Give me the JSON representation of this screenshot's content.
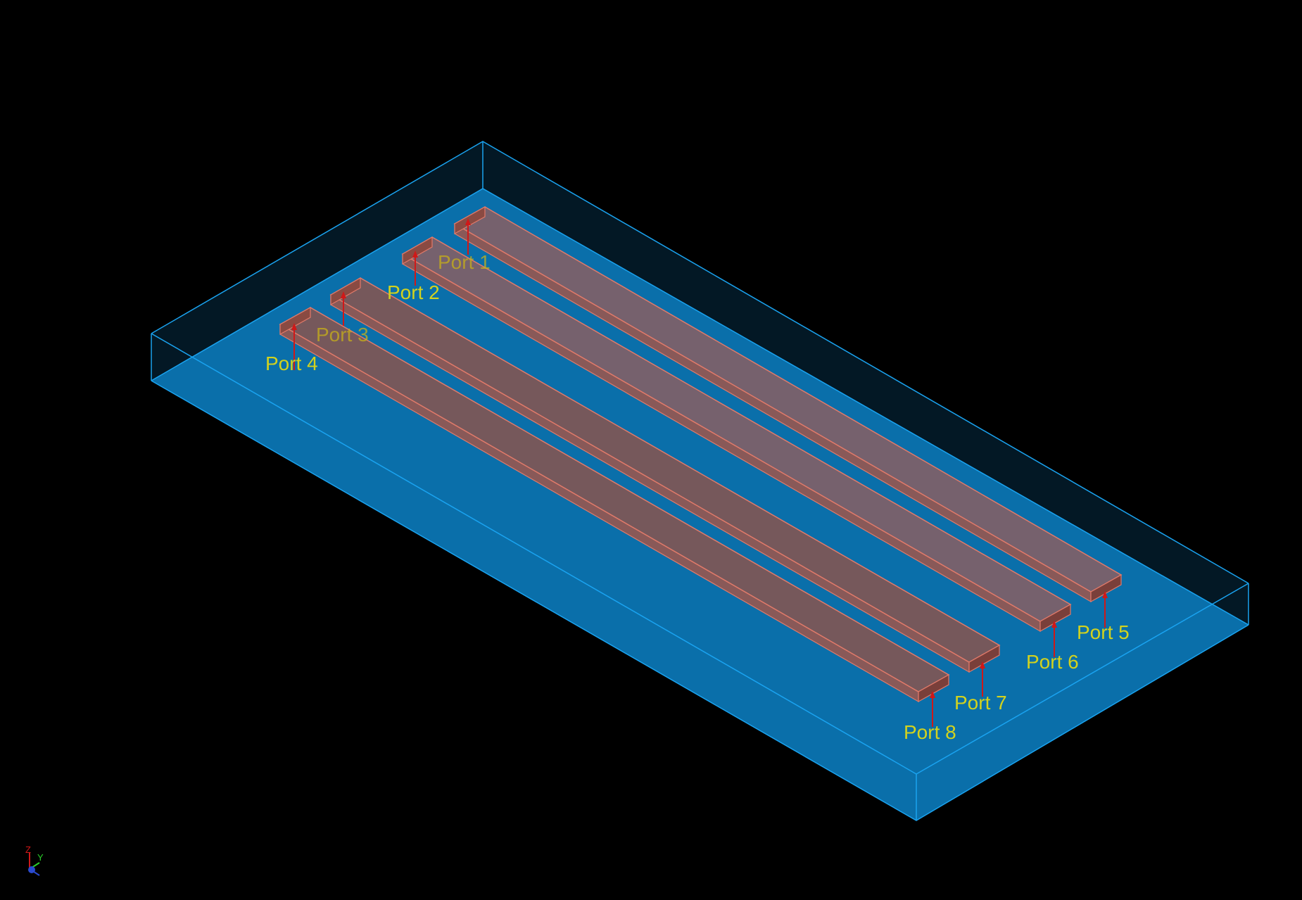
{
  "view": {
    "background": "#000000",
    "substrate_color": "#0a74b4",
    "substrate_edge_color": "#1aa3f0",
    "strip_color": "#b35a4d",
    "strip_edge_color": "#e07a6a",
    "port_label_color": "#d2d21e",
    "port_arrow_color": "#d01818"
  },
  "ports": [
    {
      "label": "Port 1"
    },
    {
      "label": "Port 2"
    },
    {
      "label": "Port 3"
    },
    {
      "label": "Port 4"
    },
    {
      "label": "Port 5"
    },
    {
      "label": "Port 6"
    },
    {
      "label": "Port 7"
    },
    {
      "label": "Port 8"
    }
  ],
  "axis_triad": {
    "z_label": "Z",
    "y_label": "Y"
  }
}
